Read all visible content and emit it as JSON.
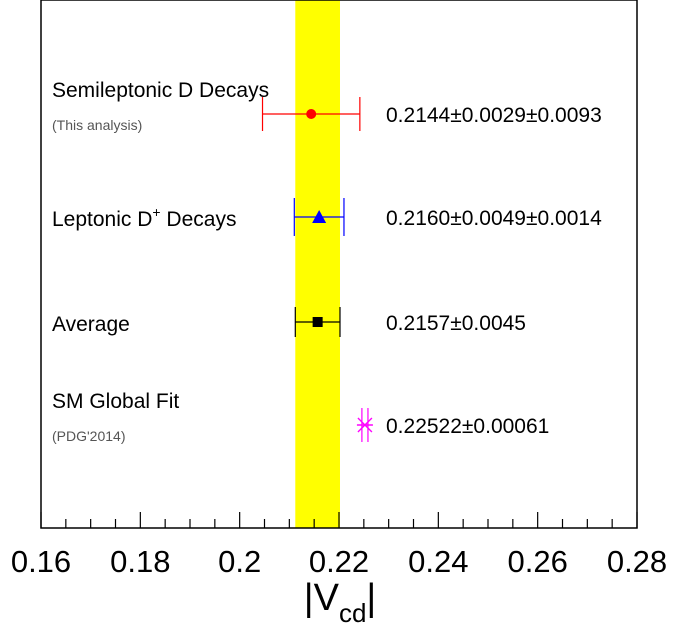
{
  "chart_data": {
    "type": "scatter",
    "xlabel": "|V",
    "xlabel_sub": "cd",
    "xlabel_end": "|",
    "xlim": [
      0.16,
      0.28
    ],
    "tick_labels": [
      "0.16",
      "0.18",
      "0.2",
      "0.22",
      "0.24",
      "0.26",
      "0.28"
    ],
    "tick_values": [
      0.16,
      0.18,
      0.2,
      0.22,
      0.24,
      0.26,
      0.28
    ],
    "band": {
      "low": 0.2112,
      "high": 0.2202,
      "color": "#ffff00"
    },
    "points": [
      {
        "label": "Semileptonic D Decays",
        "sublabel": "(This analysis)",
        "value_text": "0.2144±0.0029±0.0093",
        "x": 0.2144,
        "err_low": 0.2046,
        "err_high": 0.2242,
        "marker": "circle",
        "color": "#ff0000"
      },
      {
        "label": "Leptonic D",
        "label_sup": "+",
        "label_tail": " Decays",
        "value_text": "0.2160±0.0049±0.0014",
        "x": 0.216,
        "err_low": 0.211,
        "err_high": 0.221,
        "marker": "triangle",
        "color": "#0000ff"
      },
      {
        "label": "Average",
        "value_text": "0.2157±0.0045",
        "x": 0.2157,
        "err_low": 0.2112,
        "err_high": 0.2202,
        "marker": "square",
        "color": "#000000"
      },
      {
        "label": "SM Global Fit",
        "sublabel": "(PDG'2014)",
        "value_text": "0.22522±0.00061",
        "x": 0.22522,
        "err_low": 0.22461,
        "err_high": 0.22583,
        "marker": "star",
        "color": "#ff00ff"
      }
    ]
  }
}
